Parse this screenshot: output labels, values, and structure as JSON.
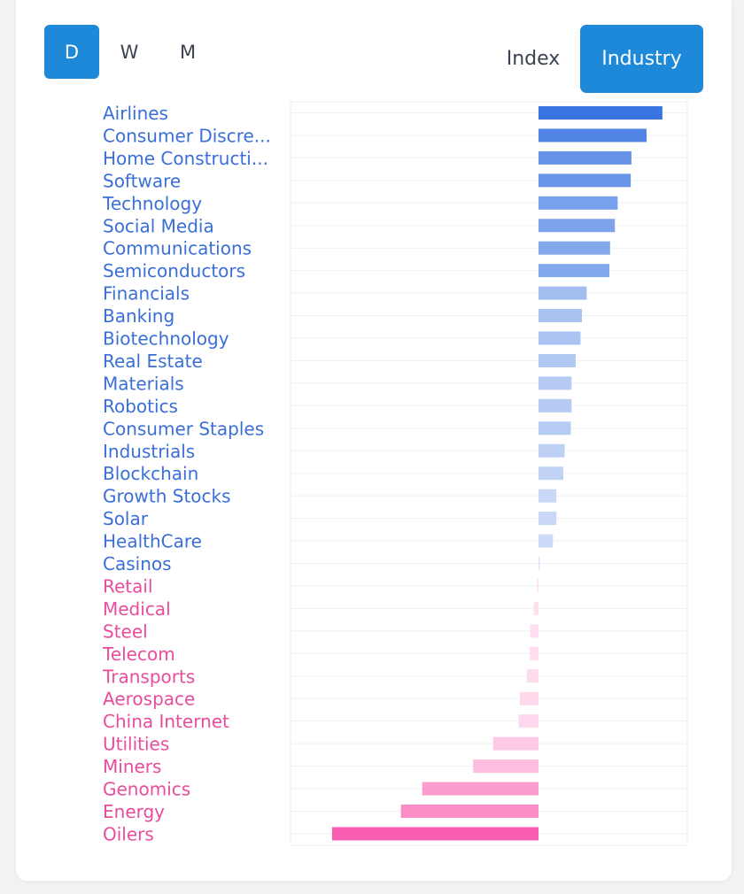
{
  "period_toggle": {
    "options": [
      "D",
      "W",
      "M"
    ],
    "selected": "D"
  },
  "view_toggle": {
    "options": [
      "Index",
      "Industry"
    ],
    "selected": "Industry"
  },
  "colors": {
    "positive_label": "#3a6fd8",
    "negative_label": "#ea4c9c",
    "positive_bar_max": "#3a74e0",
    "negative_bar_max": "#f95eb0",
    "active_button": "#1e88d9"
  },
  "chart_data": {
    "type": "bar",
    "orientation": "horizontal",
    "title": "",
    "xlabel": "",
    "ylabel": "",
    "grid": true,
    "legend": "none",
    "xlim": [
      -3.3,
      2.4
    ],
    "categories": [
      "Airlines",
      "Consumer Discre...",
      "Home Constructi...",
      "Software",
      "Technology",
      "Social Media",
      "Communications",
      "Semiconductors",
      "Financials",
      "Banking",
      "Biotechnology",
      "Real Estate",
      "Materials",
      "Robotics",
      "Consumer Staples",
      "Industrials",
      "Blockchain",
      "Growth Stocks",
      "Solar",
      "HealthCare",
      "Casinos",
      "Retail",
      "Medical",
      "Steel",
      "Telecom",
      "Transports",
      "Aerospace",
      "China Internet",
      "Utilities",
      "Miners",
      "Genomics",
      "Energy",
      "Oilers"
    ],
    "values": [
      1.8,
      1.57,
      1.35,
      1.34,
      1.15,
      1.11,
      1.04,
      1.03,
      0.7,
      0.63,
      0.61,
      0.54,
      0.48,
      0.48,
      0.47,
      0.38,
      0.36,
      0.26,
      0.26,
      0.21,
      0.02,
      -0.02,
      -0.07,
      -0.12,
      -0.13,
      -0.17,
      -0.27,
      -0.29,
      -0.66,
      -0.95,
      -1.69,
      -2.0,
      -3.0
    ]
  }
}
